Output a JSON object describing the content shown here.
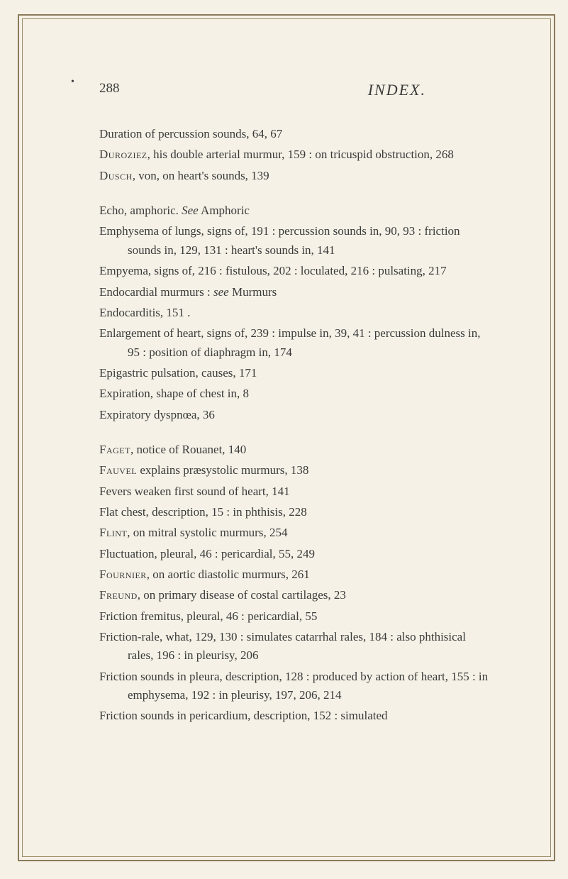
{
  "page": {
    "number": "288",
    "title": "INDEX.",
    "background_color": "#f5f1e6",
    "text_color": "#3a3a3a",
    "border_color": "#8a7a5a",
    "font_family": "Georgia, serif",
    "body_fontsize": 17,
    "title_fontsize": 22
  },
  "entries": [
    {
      "text": "Duration of percussion sounds, 64, 67",
      "break_before": false
    },
    {
      "text": "Duroziez, his double arterial murmur, 159 : on tricuspid obstruction, 268",
      "smallcaps_lead": "Duroziez",
      "break_before": false
    },
    {
      "text": "Dusch, von, on heart's sounds, 139",
      "smallcaps_lead": "Dusch",
      "break_before": false
    },
    {
      "text": "Echo, amphoric.   See Amphoric",
      "italic_word": "See",
      "break_before": true
    },
    {
      "text": "Emphysema of lungs, signs of, 191 : percussion sounds in, 90, 93 : friction sounds in, 129, 131 : heart's sounds in, 141",
      "break_before": false
    },
    {
      "text": "Empyema, signs of, 216 : fistulous, 202 : loculated, 216 : pulsating, 217",
      "break_before": false
    },
    {
      "text": "Endocardial murmurs :  see Murmurs",
      "italic_word": "see",
      "break_before": false
    },
    {
      "text": "Endocarditis, 151   .",
      "break_before": false
    },
    {
      "text": "Enlargement of heart, signs of, 239 : impulse in, 39, 41 : percussion dulness in, 95 : position of diaphragm in, 174",
      "break_before": false
    },
    {
      "text": "Epigastric pulsation, causes, 171",
      "break_before": false
    },
    {
      "text": "Expiration, shape of chest in, 8",
      "break_before": false
    },
    {
      "text": "Expiratory dyspnœa, 36",
      "break_before": false
    },
    {
      "text": "Faget, notice of Rouanet, 140",
      "smallcaps_lead": "Faget",
      "break_before": true
    },
    {
      "text": "Fauvel explains præsystolic murmurs, 138",
      "smallcaps_lead": "Fauvel",
      "break_before": false
    },
    {
      "text": "Fevers weaken first sound of heart, 141",
      "break_before": false
    },
    {
      "text": "Flat chest, description, 15 : in phthisis, 228",
      "break_before": false
    },
    {
      "text": "Flint, on mitral systolic murmurs, 254",
      "smallcaps_lead": "Flint",
      "break_before": false
    },
    {
      "text": "Fluctuation, pleural, 46 : pericardial, 55, 249",
      "break_before": false
    },
    {
      "text": "Fournier, on aortic diastolic murmurs, 261",
      "smallcaps_lead": "Fournier",
      "break_before": false
    },
    {
      "text": "Freund, on primary disease of costal cartilages, 23",
      "smallcaps_lead": "Freund",
      "break_before": false
    },
    {
      "text": "Friction fremitus, pleural, 46 : pericardial, 55",
      "break_before": false
    },
    {
      "text": "Friction-rale, what, 129, 130 : simulates catarrhal rales, 184 : also phthisical rales, 196 : in pleurisy, 206",
      "break_before": false
    },
    {
      "text": "Friction sounds in pleura, description, 128 : produced by action of heart, 155 : in emphysema, 192 : in pleurisy, 197, 206, 214",
      "break_before": false
    },
    {
      "text": "Friction sounds in pericardium, description, 152 : simulated",
      "break_before": false
    }
  ]
}
